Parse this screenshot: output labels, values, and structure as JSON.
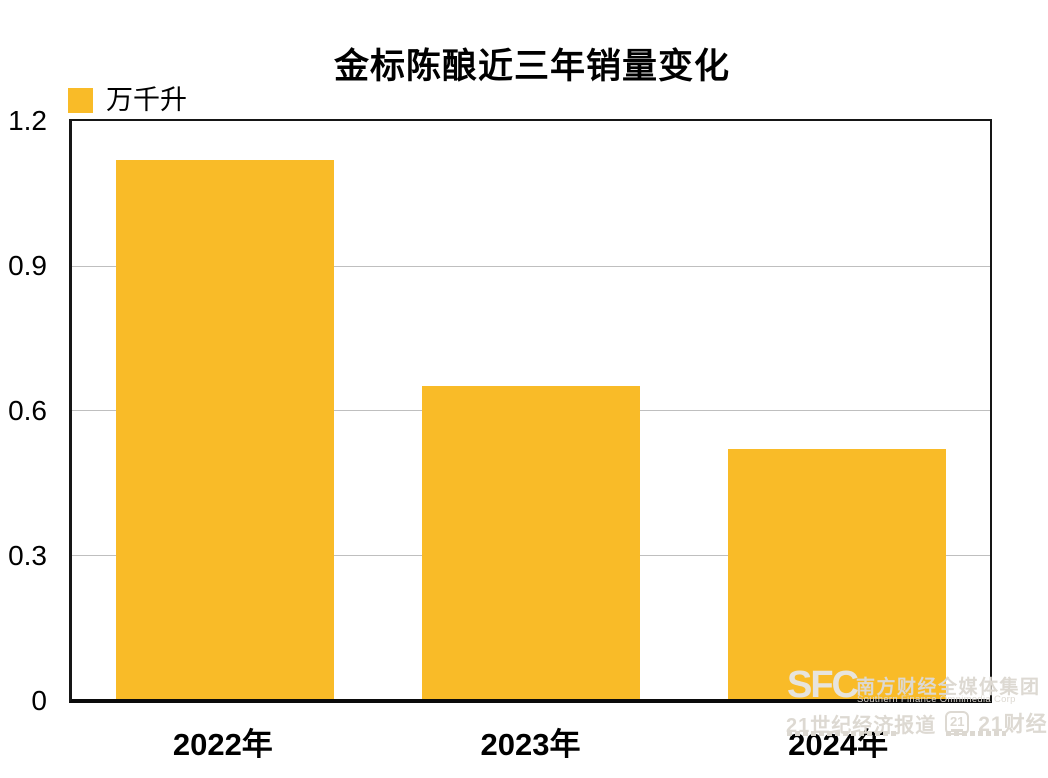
{
  "title": "金标陈酿近三年销量变化",
  "legend": {
    "label": "万千升"
  },
  "chart_data": {
    "type": "bar",
    "title": "金标陈酿近三年销量变化",
    "categories": [
      "2022年",
      "2023年",
      "2024年"
    ],
    "values": [
      1.12,
      0.65,
      0.52
    ],
    "unit_label": "万千升",
    "xlabel": "",
    "ylabel": "万千升",
    "ylim": [
      0,
      1.2
    ],
    "yticks": [
      0,
      0.3,
      0.6,
      0.9,
      1.2
    ],
    "grid": true,
    "legend_position": "top-left",
    "bar_color": "#F9BB28",
    "bar_width_frac": 0.71
  },
  "watermark": {
    "logo_text": "SFC",
    "org_cn": "南方财经全媒体集团",
    "org_en": "Southern Finance Omnimedia Corp",
    "paper_cn": "21世纪经济报道",
    "badge_label": "21",
    "site_cn": "21财经"
  },
  "colors": {
    "bar": "#F9BB28",
    "axis": "#161616",
    "gridline": "#bfbfbf",
    "text": "#000000",
    "watermark": "#ddd9d2"
  }
}
